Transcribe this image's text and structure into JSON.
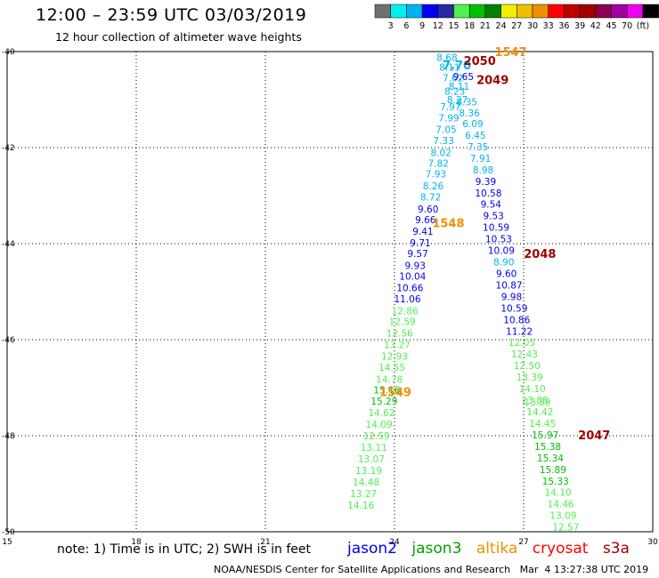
{
  "header": {
    "title": "12:00 – 23:59 UTC 03/03/2019",
    "subtitle": "12 hour collection of altimeter wave heights"
  },
  "colorbar": {
    "colors": [
      "#707070",
      "#00f0f0",
      "#00b4f0",
      "#0000f0",
      "#2828a0",
      "#50f050",
      "#00c000",
      "#008000",
      "#f0f000",
      "#f0c000",
      "#f09000",
      "#ff0000",
      "#c00000",
      "#a00000",
      "#8b0050",
      "#a000a0",
      "#f000f0",
      "#000000"
    ],
    "labels": [
      "3",
      "6",
      "9",
      "12",
      "15",
      "18",
      "21",
      "24",
      "27",
      "30",
      "33",
      "36",
      "39",
      "42",
      "45",
      "70",
      "(ft)"
    ]
  },
  "chart_data": {
    "type": "scatter",
    "title": "12:00 – 23:59 UTC 03/03/2019",
    "xlim": [
      15,
      30
    ],
    "ylim": [
      -50,
      -40
    ],
    "x_ticks": [
      "15",
      "18",
      "21",
      "24",
      "27",
      "30"
    ],
    "y_ticks": [
      "-40",
      "-42",
      "-44",
      "-46",
      "-48",
      "-50"
    ],
    "grid": true,
    "series": [
      {
        "name": "jason2",
        "color_key": "wave_height",
        "points": [
          {
            "x": 25.22,
            "y": -40.12,
            "v": "8.68",
            "c": "#00b4f0"
          },
          {
            "x": 25.28,
            "y": -40.32,
            "v": "8.11",
            "c": "#00b4f0"
          },
          {
            "x": 25.36,
            "y": -40.55,
            "v": "7.62",
            "c": "#00b4f0"
          },
          {
            "x": 25.5,
            "y": -40.72,
            "v": "8.11",
            "c": "#00b4f0"
          },
          {
            "x": 25.4,
            "y": -40.82,
            "v": "8.23",
            "c": "#00b4f0"
          },
          {
            "x": 25.46,
            "y": -41.0,
            "v": "8.27",
            "c": "#00b4f0"
          },
          {
            "x": 25.3,
            "y": -41.15,
            "v": "7.97",
            "c": "#00b4f0"
          },
          {
            "x": 25.26,
            "y": -41.38,
            "v": "7.99",
            "c": "#00b4f0"
          },
          {
            "x": 25.2,
            "y": -41.62,
            "v": "7.05",
            "c": "#00b4f0"
          },
          {
            "x": 25.14,
            "y": -41.85,
            "v": "7.33",
            "c": "#00b4f0"
          },
          {
            "x": 25.08,
            "y": -42.1,
            "v": "8.02",
            "c": "#00b4f0"
          },
          {
            "x": 25.02,
            "y": -42.32,
            "v": "7.82",
            "c": "#00b4f0"
          },
          {
            "x": 24.96,
            "y": -42.55,
            "v": "7.93",
            "c": "#00b4f0"
          },
          {
            "x": 24.9,
            "y": -42.8,
            "v": "8.26",
            "c": "#00b4f0"
          },
          {
            "x": 24.84,
            "y": -43.03,
            "v": "8.72",
            "c": "#00b4f0"
          },
          {
            "x": 24.78,
            "y": -43.28,
            "v": "9.60",
            "c": "#0000f0"
          },
          {
            "x": 24.72,
            "y": -43.5,
            "v": "9.66",
            "c": "#0000f0"
          },
          {
            "x": 24.66,
            "y": -43.74,
            "v": "9.41",
            "c": "#0000f0"
          },
          {
            "x": 24.6,
            "y": -43.98,
            "v": "9.71",
            "c": "#0000f0"
          },
          {
            "x": 24.54,
            "y": -44.2,
            "v": "9.57",
            "c": "#0000f0"
          },
          {
            "x": 24.48,
            "y": -44.45,
            "v": "9.93",
            "c": "#0000f0"
          },
          {
            "x": 24.42,
            "y": -44.68,
            "v": "10.04",
            "c": "#0000f0"
          },
          {
            "x": 24.36,
            "y": -44.92,
            "v": "10.66",
            "c": "#0000f0"
          },
          {
            "x": 24.3,
            "y": -45.15,
            "v": "11.06",
            "c": "#0000f0"
          },
          {
            "x": 24.24,
            "y": -45.4,
            "v": "12.86",
            "c": "#50f050"
          },
          {
            "x": 24.18,
            "y": -45.62,
            "v": "12.59",
            "c": "#50f050"
          },
          {
            "x": 24.12,
            "y": -45.86,
            "v": "12.56",
            "c": "#50f050"
          },
          {
            "x": 24.06,
            "y": -46.1,
            "v": "13.27",
            "c": "#50f050"
          },
          {
            "x": 24.0,
            "y": -46.34,
            "v": "12.93",
            "c": "#50f050"
          },
          {
            "x": 23.94,
            "y": -46.57,
            "v": "14.55",
            "c": "#50f050"
          },
          {
            "x": 23.88,
            "y": -46.82,
            "v": "14.78",
            "c": "#50f050"
          },
          {
            "x": 23.82,
            "y": -47.05,
            "v": "15.16",
            "c": "#00c000"
          },
          {
            "x": 23.76,
            "y": -47.28,
            "v": "15.29",
            "c": "#00c000"
          },
          {
            "x": 23.7,
            "y": -47.52,
            "v": "14.62",
            "c": "#50f050"
          },
          {
            "x": 23.64,
            "y": -47.76,
            "v": "14.09",
            "c": "#50f050"
          },
          {
            "x": 23.58,
            "y": -48.0,
            "v": "12.59",
            "c": "#50f050"
          },
          {
            "x": 23.52,
            "y": -48.24,
            "v": "13.11",
            "c": "#50f050"
          },
          {
            "x": 23.46,
            "y": -48.48,
            "v": "13.07",
            "c": "#50f050"
          },
          {
            "x": 23.4,
            "y": -48.72,
            "v": "13.19",
            "c": "#50f050"
          },
          {
            "x": 23.34,
            "y": -48.96,
            "v": "14.48",
            "c": "#50f050"
          },
          {
            "x": 23.28,
            "y": -49.2,
            "v": "13.27",
            "c": "#50f050"
          },
          {
            "x": 23.22,
            "y": -49.44,
            "v": "14.16",
            "c": "#50f050"
          }
        ]
      },
      {
        "name": "jason2",
        "color_key": "wave_height",
        "points": [
          {
            "x": 25.6,
            "y": -40.52,
            "v": "9.65",
            "c": "#0000f0"
          },
          {
            "x": 25.68,
            "y": -41.05,
            "v": "8.35",
            "c": "#00b4f0"
          },
          {
            "x": 25.74,
            "y": -41.28,
            "v": "8.36",
            "c": "#00b4f0"
          },
          {
            "x": 25.82,
            "y": -41.5,
            "v": "6.09",
            "c": "#00b4f0"
          },
          {
            "x": 25.88,
            "y": -41.74,
            "v": "6.45",
            "c": "#00b4f0"
          },
          {
            "x": 25.94,
            "y": -41.98,
            "v": "7.35",
            "c": "#00b4f0"
          },
          {
            "x": 26.0,
            "y": -42.22,
            "v": "7.91",
            "c": "#00b4f0"
          },
          {
            "x": 26.06,
            "y": -42.46,
            "v": "8.98",
            "c": "#00b4f0"
          },
          {
            "x": 26.12,
            "y": -42.7,
            "v": "9.39",
            "c": "#0000f0"
          },
          {
            "x": 26.18,
            "y": -42.94,
            "v": "10.58",
            "c": "#0000f0"
          },
          {
            "x": 26.24,
            "y": -43.18,
            "v": "9.54",
            "c": "#0000f0"
          },
          {
            "x": 26.3,
            "y": -43.42,
            "v": "9.53",
            "c": "#0000f0"
          },
          {
            "x": 26.36,
            "y": -43.66,
            "v": "10.59",
            "c": "#0000f0"
          },
          {
            "x": 26.42,
            "y": -43.9,
            "v": "10.53",
            "c": "#0000f0"
          },
          {
            "x": 26.48,
            "y": -44.14,
            "v": "10.09",
            "c": "#0000f0"
          },
          {
            "x": 26.54,
            "y": -44.38,
            "v": "8.90",
            "c": "#00b4f0"
          },
          {
            "x": 26.6,
            "y": -44.62,
            "v": "9.60",
            "c": "#0000f0"
          },
          {
            "x": 26.66,
            "y": -44.86,
            "v": "10.87",
            "c": "#0000f0"
          },
          {
            "x": 26.72,
            "y": -45.1,
            "v": "9.98",
            "c": "#0000f0"
          },
          {
            "x": 26.78,
            "y": -45.34,
            "v": "10.59",
            "c": "#0000f0"
          },
          {
            "x": 26.84,
            "y": -45.58,
            "v": "10.86",
            "c": "#0000f0"
          },
          {
            "x": 26.9,
            "y": -45.82,
            "v": "11.22",
            "c": "#0000f0"
          },
          {
            "x": 26.96,
            "y": -46.06,
            "v": "12.05",
            "c": "#50f050"
          },
          {
            "x": 27.02,
            "y": -46.3,
            "v": "12.43",
            "c": "#50f050"
          },
          {
            "x": 27.08,
            "y": -46.54,
            "v": "12.50",
            "c": "#50f050"
          },
          {
            "x": 27.14,
            "y": -46.78,
            "v": "13.39",
            "c": "#50f050"
          },
          {
            "x": 27.2,
            "y": -47.02,
            "v": "14.10",
            "c": "#50f050"
          },
          {
            "x": 27.26,
            "y": -47.26,
            "v": "13.88",
            "c": "#50f050"
          },
          {
            "x": 27.32,
            "y": -47.3,
            "v": "13.89",
            "c": "#50f050"
          },
          {
            "x": 27.38,
            "y": -47.5,
            "v": "14.42",
            "c": "#50f050"
          },
          {
            "x": 27.44,
            "y": -47.74,
            "v": "14.45",
            "c": "#50f050"
          },
          {
            "x": 27.5,
            "y": -47.98,
            "v": "15.97",
            "c": "#00c000"
          },
          {
            "x": 27.56,
            "y": -48.22,
            "v": "15.38",
            "c": "#00c000"
          },
          {
            "x": 27.62,
            "y": -48.46,
            "v": "15.34",
            "c": "#00c000"
          },
          {
            "x": 27.68,
            "y": -48.7,
            "v": "15.89",
            "c": "#00c000"
          },
          {
            "x": 27.74,
            "y": -48.94,
            "v": "15.33",
            "c": "#00c000"
          },
          {
            "x": 27.8,
            "y": -49.18,
            "v": "14.10",
            "c": "#50f050"
          },
          {
            "x": 27.86,
            "y": -49.42,
            "v": "14.46",
            "c": "#50f050"
          },
          {
            "x": 27.92,
            "y": -49.66,
            "v": "13.09",
            "c": "#50f050"
          },
          {
            "x": 27.98,
            "y": -49.9,
            "v": "12.57",
            "c": "#50f050"
          }
        ]
      }
    ],
    "time_labels": [
      {
        "x": 25.45,
        "y": -40.3,
        "v": "7.70",
        "c": "#00b4f0"
      },
      {
        "x": 26.7,
        "y": -40.02,
        "v": "1547",
        "c": "#f09000"
      },
      {
        "x": 25.98,
        "y": -40.2,
        "v": "2050",
        "c": "#a00000"
      },
      {
        "x": 26.28,
        "y": -40.6,
        "v": "2049",
        "c": "#a00000"
      },
      {
        "x": 25.25,
        "y": -43.58,
        "v": "1548",
        "c": "#f09000"
      },
      {
        "x": 27.38,
        "y": -44.22,
        "v": "2048",
        "c": "#a00000"
      },
      {
        "x": 24.02,
        "y": -47.1,
        "v": "1549",
        "c": "#f09000"
      },
      {
        "x": 28.64,
        "y": -48.0,
        "v": "2047",
        "c": "#a00000"
      }
    ]
  },
  "footer": {
    "note": "note: 1) Time is in UTC; 2) SWH is in feet",
    "satellites": [
      {
        "label": "jason2",
        "color": "#0000f0"
      },
      {
        "label": "jason3",
        "color": "#00a000"
      },
      {
        "label": "altika",
        "color": "#f09000"
      },
      {
        "label": "cryosat",
        "color": "#ff0000"
      },
      {
        "label": "s3a",
        "color": "#a00000"
      }
    ],
    "credit": "NOAA/NESDIS Center for Satellite Applications and Research   Mar  4 13:27:38 UTC 2019"
  }
}
